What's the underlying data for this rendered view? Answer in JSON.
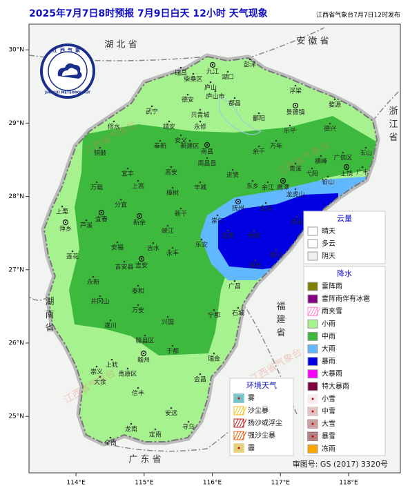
{
  "header": {
    "title": "2025年7月7日8时预报 7月9日白天 12小时  天气现象",
    "publisher": "江西省气象台7月7日12时发布"
  },
  "map": {
    "lonlim": [
      113.31,
      118.76
    ],
    "latlim": [
      24.23,
      30.35
    ],
    "lonticks": [
      {
        "value": 114,
        "label": "114°E"
      },
      {
        "value": 115,
        "label": "115°E"
      },
      {
        "value": 116,
        "label": "116°E"
      },
      {
        "value": 117,
        "label": "117°E"
      },
      {
        "value": 118,
        "label": "118°E"
      }
    ],
    "latticks": [
      {
        "value": 30,
        "label": "30°N"
      },
      {
        "value": 29,
        "label": "29°N"
      },
      {
        "value": 28,
        "label": "28°N"
      },
      {
        "value": 27,
        "label": "27°N"
      },
      {
        "value": 26,
        "label": "26°N"
      },
      {
        "value": 25,
        "label": "25°N"
      }
    ]
  },
  "logo": {
    "cn": "江西气象",
    "en": "JIANGXI METEOROLOGY"
  },
  "provinces": [
    "湖 北 省",
    "安 徽 省",
    "浙江省",
    "湖南省",
    "福建省",
    "广 东 省"
  ],
  "watermark": "江西省气象台",
  "cities": [
    "九江",
    "瑞昌",
    "湖口",
    "彭泽",
    "柴桑区",
    "庐山",
    "庐山市",
    "都昌",
    "德安",
    "武宁",
    "共青城",
    "永修",
    "修水",
    "靖安",
    "奉新",
    "安义",
    "新建区",
    "南昌",
    "南昌县",
    "浮梁",
    "景德镇",
    "婺源",
    "乐平",
    "鄱阳",
    "万年",
    "余干",
    "德兴",
    "玉山",
    "横峰",
    "弋阳",
    "广信区",
    "上饶",
    "广丰",
    "贵溪",
    "鹰潭",
    "余江",
    "东乡",
    "进贤",
    "铅山",
    "龙虎山",
    "铜鼓",
    "宜丰",
    "万载",
    "上高",
    "高安",
    "丰城",
    "樟树",
    "抚州",
    "上栗",
    "萍乡",
    "芦溪",
    "宜春",
    "分宜",
    "新余",
    "新干",
    "峡江",
    "乐安",
    "崇仁",
    "宜黄",
    "南城",
    "金溪",
    "资溪",
    "南丰",
    "黎川",
    "广昌",
    "吉水",
    "安福",
    "永丰",
    "吉安",
    "吉安县",
    "莲花",
    "泰和",
    "永新",
    "井冈山",
    "遂川",
    "万安",
    "兴国",
    "宁都",
    "石城",
    "赣县区",
    "赣州",
    "于都",
    "瑞金",
    "会昌",
    "上犹",
    "崇义",
    "南康区",
    "大余",
    "信丰",
    "安远",
    "寻乌",
    "龙南",
    "定南",
    "全南"
  ],
  "legend": {
    "cloud": {
      "title": "云量",
      "items": [
        {
          "label": "晴天",
          "color": "#ffffff"
        },
        {
          "label": "多云",
          "color": "#ffffff"
        },
        {
          "label": "阴天",
          "color": "#f0f0f0"
        }
      ]
    },
    "precip": {
      "title": "降水",
      "items": [
        {
          "label": "雷阵雨",
          "color": "#808000"
        },
        {
          "label": "雷阵雨伴有冰雹",
          "color": "#800080"
        },
        {
          "label": "雨夹雪",
          "color": "#ff7fd0",
          "style": "hatch"
        },
        {
          "label": "小雨",
          "color": "#a6f28f"
        },
        {
          "label": "中雨",
          "color": "#3dba3d"
        },
        {
          "label": "大雨",
          "color": "#61b8ff"
        },
        {
          "label": "暴雨",
          "color": "#0000e1"
        },
        {
          "label": "大暴雨",
          "color": "#fa00fa"
        },
        {
          "label": "特大暴雨",
          "color": "#800040"
        },
        {
          "label": "小雪",
          "color": "#f2dede",
          "style": "dot"
        },
        {
          "label": "中雪",
          "color": "#c89a9a",
          "style": "dot"
        },
        {
          "label": "大雪",
          "color": "#a05a5a",
          "style": "dot"
        },
        {
          "label": "暴雪",
          "color": "#7a2a2a",
          "style": "dot"
        },
        {
          "label": "冻雨",
          "color": "#ffa500"
        }
      ]
    },
    "env": {
      "title": "环境天气",
      "items": [
        {
          "label": "雾",
          "color": "#1a9aa0",
          "style": "dot"
        },
        {
          "label": "沙尘暴",
          "color": "#f0c020",
          "style": "hatch"
        },
        {
          "label": "扬沙或浮尘",
          "color": "#c02020",
          "style": "hatch"
        },
        {
          "label": "强沙尘暴",
          "color": "#e06010",
          "style": "hatch"
        },
        {
          "label": "霾",
          "color": "#d0b020",
          "style": "dot"
        }
      ]
    }
  },
  "review_number": "审图号: GS (2017) 3320号"
}
